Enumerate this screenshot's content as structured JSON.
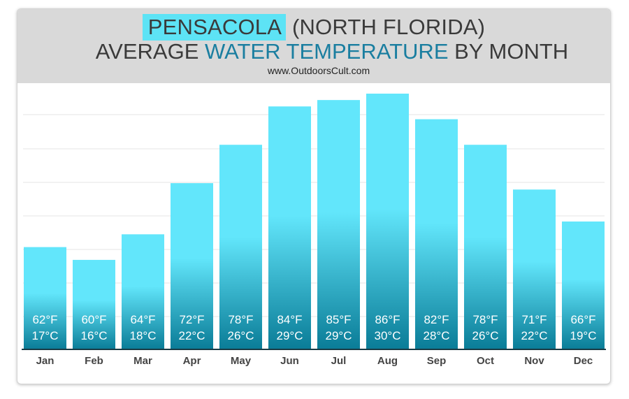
{
  "title": {
    "city": "PENSACOLA",
    "region": "(NORTH FLORIDA)",
    "line2_prefix": "AVERAGE",
    "line2_accent": "WATER TEMPERATURE",
    "line2_suffix": "BY MONTH",
    "website": "www.OutdoorsCult.com"
  },
  "colors": {
    "bar_top": "#62e6fb",
    "bar_bottom": "#0a7c97",
    "header_bg": "#d9d9d9",
    "highlight": "#5de3f5",
    "accent_text": "#1a7ea0"
  },
  "chart_data": {
    "type": "bar",
    "title": "PENSACOLA (NORTH FLORIDA) AVERAGE WATER TEMPERATURE BY MONTH",
    "categories": [
      "Jan",
      "Feb",
      "Mar",
      "Apr",
      "May",
      "Jun",
      "Jul",
      "Aug",
      "Sep",
      "Oct",
      "Nov",
      "Dec"
    ],
    "series": [
      {
        "values": [
          62,
          60,
          64,
          72,
          78,
          84,
          85,
          86,
          82,
          78,
          71,
          66
        ]
      }
    ],
    "values_f": [
      62,
      60,
      64,
      72,
      78,
      84,
      85,
      86,
      82,
      78,
      71,
      66
    ],
    "values_c": [
      17,
      16,
      18,
      22,
      26,
      29,
      29,
      30,
      28,
      26,
      22,
      19
    ],
    "labels_f": [
      "62°F",
      "60°F",
      "64°F",
      "72°F",
      "78°F",
      "84°F",
      "85°F",
      "86°F",
      "82°F",
      "78°F",
      "71°F",
      "66°F"
    ],
    "labels_c": [
      "17°C",
      "16°C",
      "18°C",
      "22°C",
      "26°C",
      "29°C",
      "29°C",
      "30°C",
      "28°C",
      "26°C",
      "22°C",
      "19°C"
    ],
    "ylim": [
      46,
      86
    ],
    "gridlines": true,
    "legend": false,
    "xlabel": "",
    "ylabel": ""
  }
}
